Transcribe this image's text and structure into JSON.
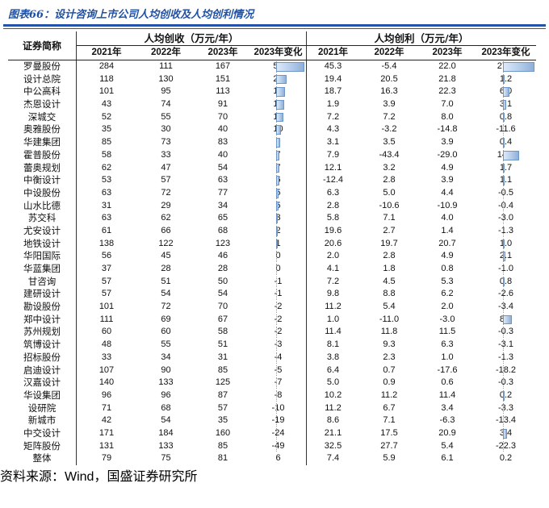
{
  "title": "图表66：设计咨询上市公司人均创收及人均创利情况",
  "source": "资料来源：Wind，国盛证券研究所",
  "colors": {
    "title_blue": "#2151a3",
    "rule_blue": "#2553a8",
    "positive_bar": "#8fb0da",
    "negative_bar": "#ff4d3e",
    "source_red": "#a23b2a"
  },
  "table": {
    "name_header": "证券简称",
    "group_headers": [
      "人均创收（万元/年）",
      "人均创利（万元/年）"
    ],
    "year_headers": [
      "2021年",
      "2022年",
      "2023年",
      "2023年变化"
    ],
    "summary_label": "整体",
    "rows": [
      {
        "name": "罗曼股份",
        "revenue": [
          284,
          111,
          167
        ],
        "revenue_change": 56,
        "profit": [
          "45.3",
          "-5.4",
          "22.0"
        ],
        "profit_change": "27.4"
      },
      {
        "name": "设计总院",
        "revenue": [
          118,
          130,
          151
        ],
        "revenue_change": 21,
        "profit": [
          "19.4",
          "20.5",
          "21.8"
        ],
        "profit_change": "1.2"
      },
      {
        "name": "中公高科",
        "revenue": [
          101,
          95,
          113
        ],
        "revenue_change": 18,
        "profit": [
          "18.7",
          "16.3",
          "22.3"
        ],
        "profit_change": "6.0"
      },
      {
        "name": "杰恩设计",
        "revenue": [
          43,
          74,
          91
        ],
        "revenue_change": 17,
        "profit": [
          "1.9",
          "3.9",
          "7.0"
        ],
        "profit_change": "3.1"
      },
      {
        "name": "深城交",
        "revenue": [
          52,
          55,
          70
        ],
        "revenue_change": 15,
        "profit": [
          "7.2",
          "7.2",
          "8.0"
        ],
        "profit_change": "0.8"
      },
      {
        "name": "奥雅股份",
        "revenue": [
          35,
          30,
          40
        ],
        "revenue_change": 10,
        "profit": [
          "4.3",
          "-3.2",
          "-14.8"
        ],
        "profit_change": "-11.6"
      },
      {
        "name": "华建集团",
        "revenue": [
          85,
          73,
          83
        ],
        "revenue_change": 9,
        "profit": [
          "3.1",
          "3.5",
          "3.9"
        ],
        "profit_change": "0.4"
      },
      {
        "name": "霍普股份",
        "revenue": [
          58,
          33,
          40
        ],
        "revenue_change": 7,
        "profit": [
          "7.9",
          "-43.4",
          "-29.0"
        ],
        "profit_change": "14.4"
      },
      {
        "name": "蕾奥规划",
        "revenue": [
          62,
          47,
          54
        ],
        "revenue_change": 7,
        "profit": [
          "12.1",
          "3.2",
          "4.9"
        ],
        "profit_change": "1.7"
      },
      {
        "name": "中衡设计",
        "revenue": [
          53,
          57,
          63
        ],
        "revenue_change": 6,
        "profit": [
          "-12.4",
          "2.8",
          "3.9"
        ],
        "profit_change": "1.1"
      },
      {
        "name": "中设股份",
        "revenue": [
          63,
          72,
          77
        ],
        "revenue_change": 5,
        "profit": [
          "6.3",
          "5.0",
          "4.4"
        ],
        "profit_change": "-0.5"
      },
      {
        "name": "山水比德",
        "revenue": [
          31,
          29,
          34
        ],
        "revenue_change": 5,
        "profit": [
          "2.8",
          "-10.6",
          "-10.9"
        ],
        "profit_change": "-0.4"
      },
      {
        "name": "苏交科",
        "revenue": [
          63,
          62,
          65
        ],
        "revenue_change": 3,
        "profit": [
          "5.8",
          "7.1",
          "4.0"
        ],
        "profit_change": "-3.0"
      },
      {
        "name": "尤安设计",
        "revenue": [
          61,
          66,
          68
        ],
        "revenue_change": 2,
        "profit": [
          "19.6",
          "2.7",
          "1.4"
        ],
        "profit_change": "-1.3"
      },
      {
        "name": "地铁设计",
        "revenue": [
          138,
          122,
          123
        ],
        "revenue_change": 1,
        "profit": [
          "20.6",
          "19.7",
          "20.7"
        ],
        "profit_change": "1.0"
      },
      {
        "name": "华阳国际",
        "revenue": [
          56,
          45,
          46
        ],
        "revenue_change": 0,
        "profit": [
          "2.0",
          "2.8",
          "4.9"
        ],
        "profit_change": "2.1"
      },
      {
        "name": "华蓝集团",
        "revenue": [
          37,
          28,
          28
        ],
        "revenue_change": 0,
        "profit": [
          "4.1",
          "1.8",
          "0.8"
        ],
        "profit_change": "-1.0"
      },
      {
        "name": "甘咨询",
        "revenue": [
          57,
          51,
          50
        ],
        "revenue_change": -1,
        "profit": [
          "7.2",
          "4.5",
          "5.3"
        ],
        "profit_change": "0.8"
      },
      {
        "name": "建研设计",
        "revenue": [
          57,
          54,
          54
        ],
        "revenue_change": -1,
        "profit": [
          "9.8",
          "8.8",
          "6.2"
        ],
        "profit_change": "-2.6"
      },
      {
        "name": "勘设股份",
        "revenue": [
          101,
          72,
          70
        ],
        "revenue_change": -2,
        "profit": [
          "11.2",
          "5.4",
          "2.0"
        ],
        "profit_change": "-3.4"
      },
      {
        "name": "郑中设计",
        "revenue": [
          111,
          69,
          67
        ],
        "revenue_change": -2,
        "profit": [
          "1.0",
          "-11.0",
          "-3.0"
        ],
        "profit_change": "8.0"
      },
      {
        "name": "苏州规划",
        "revenue": [
          60,
          60,
          58
        ],
        "revenue_change": -2,
        "profit": [
          "11.4",
          "11.8",
          "11.5"
        ],
        "profit_change": "-0.3"
      },
      {
        "name": "筑博设计",
        "revenue": [
          48,
          55,
          51
        ],
        "revenue_change": -3,
        "profit": [
          "8.1",
          "9.3",
          "6.3"
        ],
        "profit_change": "-3.1"
      },
      {
        "name": "招标股份",
        "revenue": [
          33,
          34,
          31
        ],
        "revenue_change": -4,
        "profit": [
          "3.8",
          "2.3",
          "1.0"
        ],
        "profit_change": "-1.3"
      },
      {
        "name": "启迪设计",
        "revenue": [
          107,
          90,
          85
        ],
        "revenue_change": -5,
        "profit": [
          "6.4",
          "0.7",
          "-17.6"
        ],
        "profit_change": "-18.2"
      },
      {
        "name": "汉嘉设计",
        "revenue": [
          140,
          133,
          125
        ],
        "revenue_change": -7,
        "profit": [
          "5.0",
          "0.9",
          "0.6"
        ],
        "profit_change": "-0.3"
      },
      {
        "name": "华设集团",
        "revenue": [
          96,
          96,
          87
        ],
        "revenue_change": -8,
        "profit": [
          "10.2",
          "11.2",
          "11.4"
        ],
        "profit_change": "0.2"
      },
      {
        "name": "设研院",
        "revenue": [
          71,
          68,
          57
        ],
        "revenue_change": -10,
        "profit": [
          "11.2",
          "6.7",
          "3.4"
        ],
        "profit_change": "-3.3"
      },
      {
        "name": "新城市",
        "revenue": [
          42,
          54,
          35
        ],
        "revenue_change": -19,
        "profit": [
          "8.6",
          "7.1",
          "-6.3"
        ],
        "profit_change": "-13.4"
      },
      {
        "name": "中交设计",
        "revenue": [
          171,
          184,
          160
        ],
        "revenue_change": -24,
        "profit": [
          "21.1",
          "17.5",
          "20.9"
        ],
        "profit_change": "3.4"
      },
      {
        "name": "矩阵股份",
        "revenue": [
          131,
          133,
          85
        ],
        "revenue_change": -49,
        "profit": [
          "32.5",
          "27.7",
          "5.4"
        ],
        "profit_change": "-22.3"
      }
    ],
    "summary": {
      "revenue": [
        79,
        75,
        81
      ],
      "revenue_change": 6,
      "profit": [
        "7.4",
        "5.9",
        "6.1"
      ],
      "profit_change": "0.2"
    }
  }
}
